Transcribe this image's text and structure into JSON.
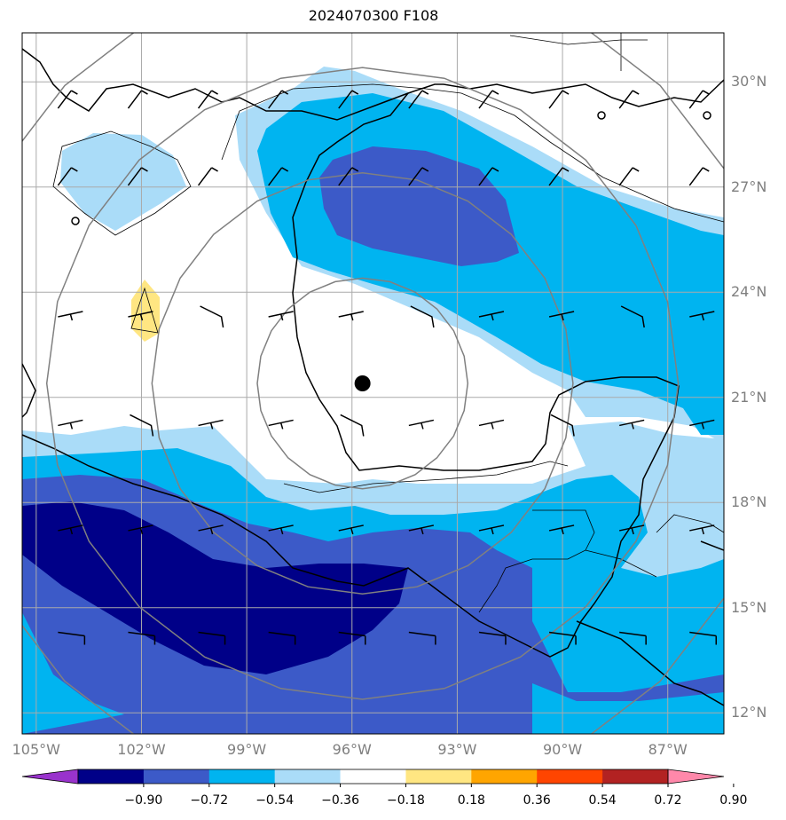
{
  "title": "2024070300 F108",
  "lat_labels": [
    {
      "text": "30°N",
      "lat": 30
    },
    {
      "text": "27°N",
      "lat": 27
    },
    {
      "text": "24°N",
      "lat": 24
    },
    {
      "text": "21°N",
      "lat": 21
    },
    {
      "text": "18°N",
      "lat": 18
    },
    {
      "text": "15°N",
      "lat": 15
    },
    {
      "text": "12°N",
      "lat": 12
    }
  ],
  "lon_labels": [
    {
      "text": "105°W",
      "lon": -105
    },
    {
      "text": "102°W",
      "lon": -102
    },
    {
      "text": "99°W",
      "lon": -99
    },
    {
      "text": "96°W",
      "lon": -96
    },
    {
      "text": "93°W",
      "lon": -93
    },
    {
      "text": "90°W",
      "lon": -90
    },
    {
      "text": "87°W",
      "lon": -87
    }
  ],
  "colorbar": {
    "colors": [
      "#9933cc",
      "#000088",
      "#3c5ac8",
      "#00b4f0",
      "#aadcf8",
      "#ffffff",
      "#ffe682",
      "#ffa500",
      "#ff4500",
      "#b22222",
      "#ff88aa"
    ],
    "labels": [
      "−0.90",
      "−0.72",
      "−0.54",
      "−0.36",
      "−0.18",
      "0.18",
      "0.36",
      "0.54",
      "0.72",
      "0.90"
    ]
  },
  "map_extent": {
    "lon_min": -105.4,
    "lon_max": -85.4,
    "lat_min": 11.4,
    "lat_max": 31.4
  },
  "storm_center": {
    "lon": -95.7,
    "lat": 21.4
  },
  "range_rings_deg": [
    3,
    6,
    9,
    12
  ]
}
